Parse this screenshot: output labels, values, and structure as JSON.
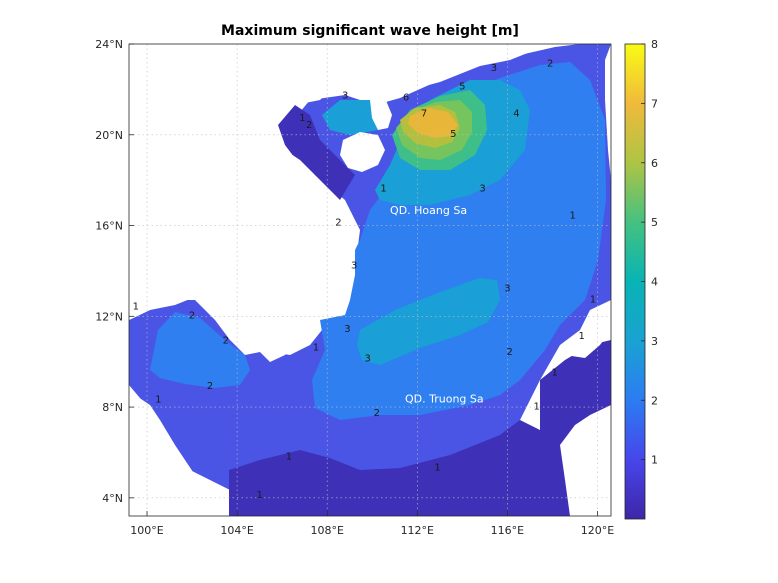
{
  "chart_data": {
    "type": "heatmap",
    "title": "Maximum significant wave height [m]",
    "xlabel": "",
    "ylabel": "",
    "x_ticks": [
      {
        "value": 100,
        "label": "100°E"
      },
      {
        "value": 104,
        "label": "104°E"
      },
      {
        "value": 108,
        "label": "108°E"
      },
      {
        "value": 112,
        "label": "112°E"
      },
      {
        "value": 116,
        "label": "116°E"
      },
      {
        "value": 120,
        "label": "120°E"
      }
    ],
    "y_ticks": [
      {
        "value": 4,
        "label": "4°N"
      },
      {
        "value": 8,
        "label": "8°N"
      },
      {
        "value": 12,
        "label": "12°N"
      },
      {
        "value": 16,
        "label": "16°N"
      },
      {
        "value": 20,
        "label": "20°N"
      },
      {
        "value": 24,
        "label": "24°N"
      }
    ],
    "xlim": [
      99.2,
      120.6
    ],
    "ylim": [
      3.2,
      24
    ],
    "grid": true,
    "colorbar": {
      "range": [
        0,
        8
      ],
      "ticks": [
        {
          "value": 1,
          "label": "1"
        },
        {
          "value": 2,
          "label": "2"
        },
        {
          "value": 3,
          "label": "3"
        },
        {
          "value": 4,
          "label": "4"
        },
        {
          "value": 5,
          "label": "5"
        },
        {
          "value": 6,
          "label": "6"
        },
        {
          "value": 7,
          "label": "7"
        },
        {
          "value": 8,
          "label": "8"
        }
      ]
    },
    "annotations": [
      {
        "text": "QD. Hoang Sa",
        "lon": 112.5,
        "lat": 16.5
      },
      {
        "text": "QD. Truong Sa",
        "lon": 113.2,
        "lat": 8.2
      }
    ],
    "contour_labels": [
      {
        "text": "1",
        "lon": 99.5,
        "lat": 12.3
      },
      {
        "text": "1",
        "lon": 100.5,
        "lat": 8.2
      },
      {
        "text": "1",
        "lon": 105.0,
        "lat": 4.0
      },
      {
        "text": "1",
        "lon": 106.3,
        "lat": 5.7
      },
      {
        "text": "1",
        "lon": 107.5,
        "lat": 10.5
      },
      {
        "text": "1",
        "lon": 110.5,
        "lat": 17.5
      },
      {
        "text": "1",
        "lon": 112.9,
        "lat": 5.2
      },
      {
        "text": "1",
        "lon": 117.3,
        "lat": 7.9
      },
      {
        "text": "1",
        "lon": 118.1,
        "lat": 9.4
      },
      {
        "text": "1",
        "lon": 119.3,
        "lat": 11.0
      },
      {
        "text": "1",
        "lon": 119.8,
        "lat": 12.6
      },
      {
        "text": "1",
        "lon": 118.9,
        "lat": 16.3
      },
      {
        "text": "1",
        "lon": 106.9,
        "lat": 20.6
      },
      {
        "text": "2",
        "lon": 102.8,
        "lat": 8.8
      },
      {
        "text": "2",
        "lon": 102.0,
        "lat": 11.9
      },
      {
        "text": "2",
        "lon": 103.5,
        "lat": 10.8
      },
      {
        "text": "2",
        "lon": 108.5,
        "lat": 16.0
      },
      {
        "text": "2",
        "lon": 110.2,
        "lat": 7.6
      },
      {
        "text": "2",
        "lon": 116.1,
        "lat": 10.3
      },
      {
        "text": "2",
        "lon": 117.9,
        "lat": 23.0
      },
      {
        "text": "2",
        "lon": 107.2,
        "lat": 20.3
      },
      {
        "text": "3",
        "lon": 108.8,
        "lat": 21.6
      },
      {
        "text": "3",
        "lon": 109.2,
        "lat": 14.1
      },
      {
        "text": "3",
        "lon": 108.9,
        "lat": 11.3
      },
      {
        "text": "3",
        "lon": 109.8,
        "lat": 10.0
      },
      {
        "text": "3",
        "lon": 114.9,
        "lat": 17.5
      },
      {
        "text": "3",
        "lon": 115.4,
        "lat": 22.8
      },
      {
        "text": "3",
        "lon": 116.0,
        "lat": 13.1
      },
      {
        "text": "4",
        "lon": 116.4,
        "lat": 20.8
      },
      {
        "text": "5",
        "lon": 113.6,
        "lat": 19.9
      },
      {
        "text": "5",
        "lon": 114.0,
        "lat": 22.0
      },
      {
        "text": "6",
        "lon": 111.5,
        "lat": 21.5
      },
      {
        "text": "7",
        "lon": 112.3,
        "lat": 20.8
      }
    ]
  }
}
